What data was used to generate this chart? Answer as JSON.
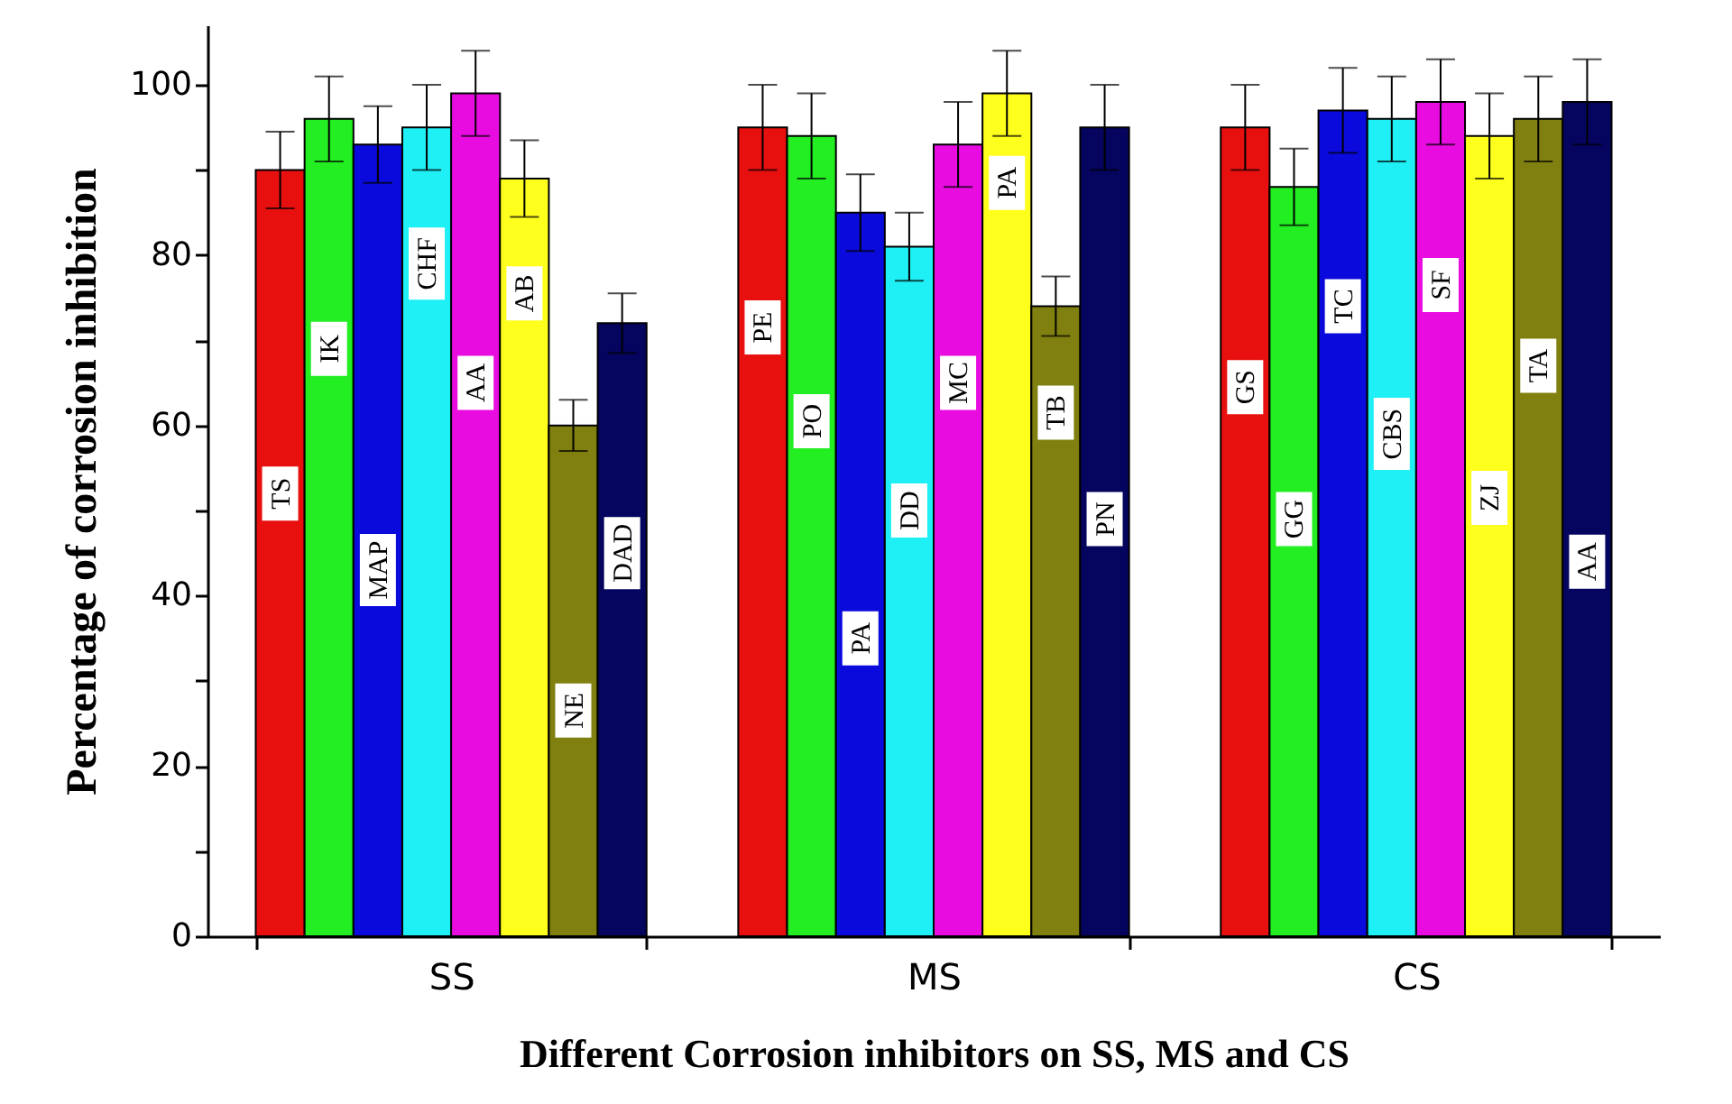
{
  "chart_data": {
    "type": "bar",
    "xlabel": "Different Corrosion inhibitors on SS, MS and CS",
    "ylabel": "Percentage of corrosion inhibition",
    "categories": [
      "SS",
      "MS",
      "CS"
    ],
    "series": [
      {
        "color": "#e8100f",
        "values": [
          90,
          95,
          95
        ],
        "errors": [
          4.5,
          5,
          5
        ]
      },
      {
        "color": "#22ee22",
        "values": [
          96,
          94,
          88
        ],
        "errors": [
          5,
          5,
          4.5
        ]
      },
      {
        "color": "#0a0adc",
        "values": [
          93,
          85,
          97
        ],
        "errors": [
          4.5,
          4.5,
          5
        ]
      },
      {
        "color": "#1ef0f5",
        "values": [
          95,
          81,
          96
        ],
        "errors": [
          5,
          4,
          5
        ]
      },
      {
        "color": "#e80ce0",
        "values": [
          99,
          93,
          98
        ],
        "errors": [
          5,
          5,
          5
        ]
      },
      {
        "color": "#ffff1e",
        "values": [
          89,
          99,
          94
        ],
        "errors": [
          4.5,
          5,
          5
        ]
      },
      {
        "color": "#808010",
        "values": [
          60,
          74,
          96
        ],
        "errors": [
          3,
          3.5,
          5
        ]
      },
      {
        "color": "#05055f",
        "values": [
          72,
          95,
          98
        ],
        "errors": [
          3.5,
          5,
          5
        ]
      }
    ],
    "ylim": [
      0,
      107
    ],
    "yticks": [
      0,
      {
        "value": 10,
        "label": null
      },
      20,
      {
        "value": 30,
        "label": null
      },
      40,
      {
        "value": 50,
        "label": null
      },
      60,
      {
        "value": 70,
        "label": null
      },
      80,
      {
        "value": 90,
        "label": null
      },
      100
    ],
    "grid": false,
    "annotations": [
      {
        "text": "TS",
        "y": 52
      },
      {
        "text": "IK",
        "y": 69
      },
      {
        "text": "MAP",
        "y": 43
      },
      {
        "text": "CHF",
        "y": 79
      },
      {
        "text": "AA",
        "y": 65
      },
      {
        "text": "AB",
        "y": 75.5
      },
      {
        "text": "NE",
        "y": 26.5
      },
      {
        "text": "DAD",
        "y": 45
      },
      {
        "text": "PE",
        "y": 71.5
      },
      {
        "text": "PO",
        "y": 60.5
      },
      {
        "text": "PA",
        "y": 35
      },
      {
        "text": "DD",
        "y": 50
      },
      {
        "text": "MC",
        "y": 65
      },
      {
        "text": "PA",
        "y": 88.5
      },
      {
        "text": "TB",
        "y": 61.5
      },
      {
        "text": "PN",
        "y": 49
      },
      {
        "text": "GS",
        "y": 64.5
      },
      {
        "text": "GG",
        "y": 49
      },
      {
        "text": "TC",
        "y": 74
      },
      {
        "text": "CBS",
        "y": 59
      },
      {
        "text": "SF",
        "y": 76.5
      },
      {
        "text": "ZJ",
        "y": 51.5
      },
      {
        "text": "TA",
        "y": 67
      },
      {
        "text": "AA",
        "y": 44
      }
    ]
  }
}
